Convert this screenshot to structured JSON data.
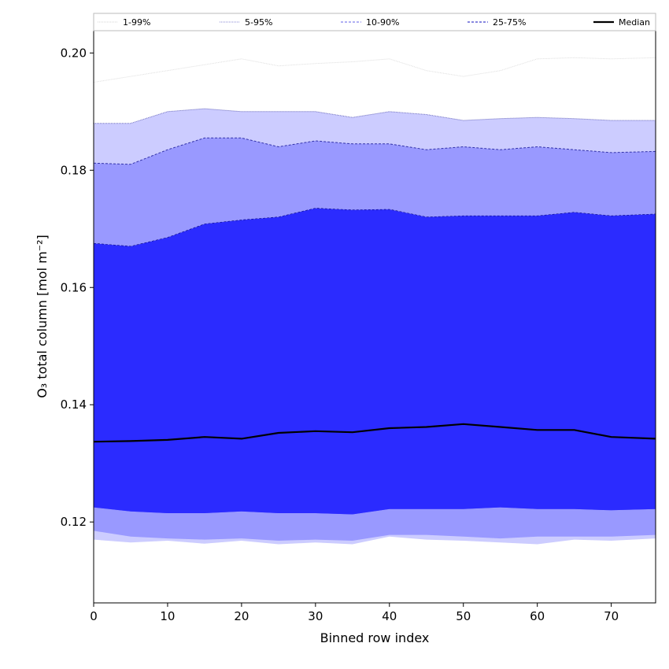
{
  "chart_data": {
    "type": "area",
    "xlabel": "Binned row index",
    "ylabel": "O₃ total column [mol m⁻²]",
    "xlim": [
      0,
      76
    ],
    "ylim": [
      0.1062,
      0.2038
    ],
    "xticks": [
      0,
      10,
      20,
      30,
      40,
      50,
      60,
      70
    ],
    "yticks": [
      0.12,
      0.14,
      0.16,
      0.18,
      0.2
    ],
    "grid": false,
    "legend_position": "top, above plot, single row",
    "x": [
      0,
      5,
      10,
      15,
      20,
      25,
      30,
      35,
      40,
      45,
      50,
      55,
      60,
      65,
      70,
      76
    ],
    "bands": [
      {
        "name": "1-99%",
        "color": "#ffffff",
        "line_color": "#dddddd",
        "lower": [
          0.1115,
          0.111,
          0.1122,
          0.1122,
          0.113,
          0.1138,
          0.1142,
          0.1133,
          0.1136,
          0.114,
          0.1133,
          0.1128,
          0.113,
          0.1135,
          0.114,
          0.1143
        ],
        "upper": [
          0.195,
          0.196,
          0.197,
          0.198,
          0.199,
          0.1978,
          0.1982,
          0.1985,
          0.199,
          0.197,
          0.196,
          0.197,
          0.199,
          0.1992,
          0.199,
          0.1992
        ]
      },
      {
        "name": "5-95%",
        "color": "#ccccff",
        "line_color": "#6666bb",
        "lower": [
          0.117,
          0.1165,
          0.1168,
          0.1163,
          0.1168,
          0.1162,
          0.1165,
          0.1162,
          0.1175,
          0.117,
          0.1168,
          0.1165,
          0.1162,
          0.117,
          0.1168,
          0.1172
        ],
        "upper": [
          0.188,
          0.188,
          0.19,
          0.1905,
          0.19,
          0.19,
          0.19,
          0.189,
          0.19,
          0.1895,
          0.1885,
          0.1888,
          0.189,
          0.1888,
          0.1885,
          0.1885
        ]
      },
      {
        "name": "10-90%",
        "color": "#9999ff",
        "line_color": "#3333aa",
        "lower": [
          0.1185,
          0.1175,
          0.1172,
          0.117,
          0.1172,
          0.1168,
          0.117,
          0.1168,
          0.1178,
          0.1178,
          0.1175,
          0.1172,
          0.1175,
          0.1175,
          0.1175,
          0.1178
        ],
        "upper": [
          0.1812,
          0.181,
          0.1835,
          0.1855,
          0.1855,
          0.184,
          0.185,
          0.1845,
          0.1845,
          0.1835,
          0.184,
          0.1835,
          0.184,
          0.1835,
          0.183,
          0.1832
        ]
      },
      {
        "name": "25-75%",
        "color": "#5555ff",
        "line_color": "#000066",
        "lower": [
          0.1225,
          0.1218,
          0.1215,
          0.1215,
          0.1218,
          0.1215,
          0.1215,
          0.1213,
          0.1222,
          0.1222,
          0.1222,
          0.1225,
          0.1222,
          0.1222,
          0.122,
          0.1222
        ],
        "upper": [
          0.1675,
          0.167,
          0.1685,
          0.1708,
          0.1715,
          0.172,
          0.1735,
          0.1732,
          0.1733,
          0.172,
          0.1722,
          0.1722,
          0.1722,
          0.1728,
          0.1722,
          0.1725
        ]
      }
    ],
    "core": {
      "color": "#2b2bff"
    },
    "series": [
      {
        "name": "Median",
        "color": "#000000",
        "values": [
          0.1337,
          0.1338,
          0.134,
          0.1345,
          0.1342,
          0.1352,
          0.1355,
          0.1353,
          0.136,
          0.1362,
          0.1367,
          0.1362,
          0.1357,
          0.1357,
          0.1345,
          0.1342
        ]
      }
    ],
    "legend": [
      {
        "label": "1-99%",
        "style": "dotted",
        "color": "#dddddd"
      },
      {
        "label": "5-95%",
        "style": "dotted",
        "color": "#a0a0dd"
      },
      {
        "label": "10-90%",
        "style": "dashed",
        "color": "#8080ee"
      },
      {
        "label": "25-75%",
        "style": "dashed",
        "color": "#4040cc"
      },
      {
        "label": "Median",
        "style": "solid",
        "color": "#000000"
      }
    ]
  }
}
